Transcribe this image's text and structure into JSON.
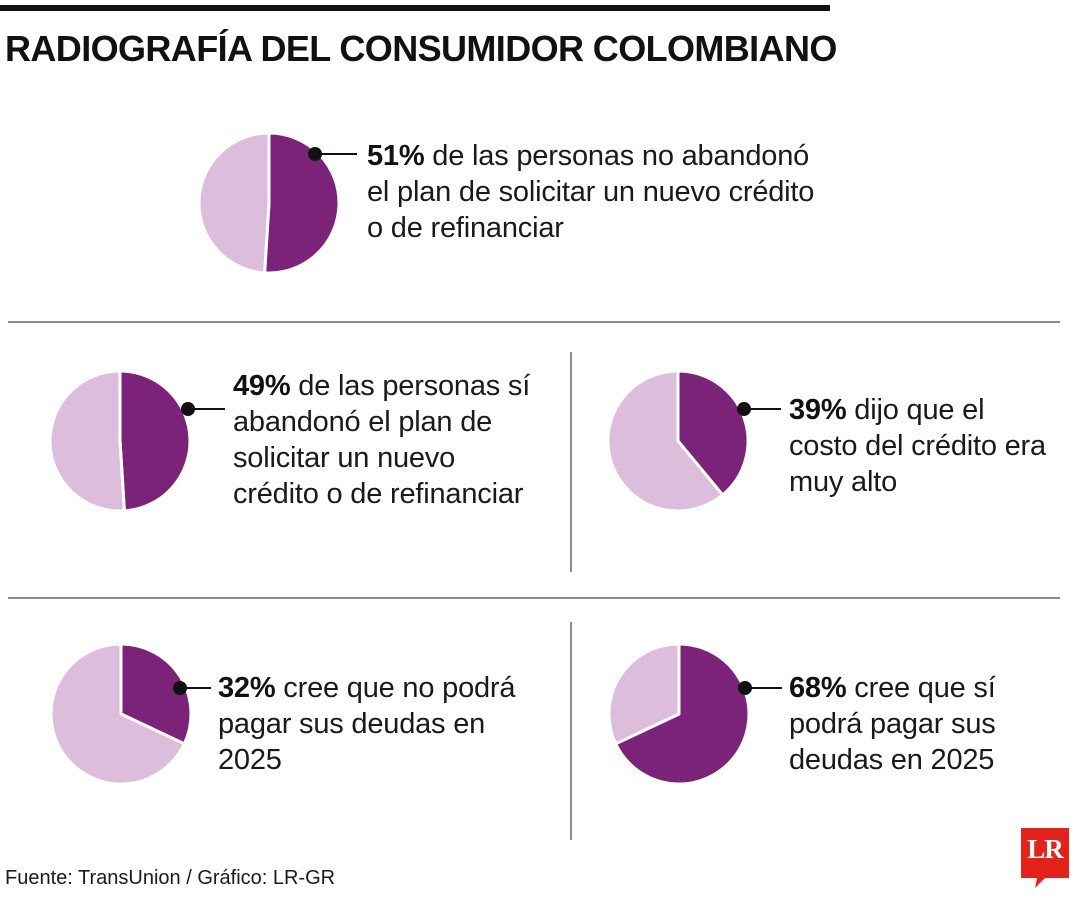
{
  "title": "RADIOGRAFÍA DEL CONSUMIDOR COLOMBIANO",
  "colors": {
    "accent": "#7b2378",
    "light": "#dcbddc",
    "text": "#1a1a1a",
    "rule": "#8c8c8c",
    "brand": "#e3231b"
  },
  "chart_data": [
    {
      "type": "pie",
      "value_label": "51%",
      "text": " de las personas no abandonó el plan de solicitar un nuevo crédito o de refinanciar",
      "slices": [
        51,
        49
      ]
    },
    {
      "type": "pie",
      "value_label": "49%",
      "text": " de las personas sí abandonó el plan de solicitar un nuevo crédito o de refinanciar",
      "slices": [
        49,
        51
      ]
    },
    {
      "type": "pie",
      "value_label": "39%",
      "text": " dijo que el costo del crédito era muy alto",
      "slices": [
        39,
        61
      ]
    },
    {
      "type": "pie",
      "value_label": "32%",
      "text": " cree que no podrá pagar sus deudas en 2025",
      "slices": [
        32,
        68
      ]
    },
    {
      "type": "pie",
      "value_label": "68%",
      "text": " cree que sí podrá pagar sus deudas en 2025",
      "slices": [
        68,
        32
      ]
    }
  ],
  "footer": "Fuente: TransUnion / Gráfico: LR-GR",
  "logo": "LR"
}
